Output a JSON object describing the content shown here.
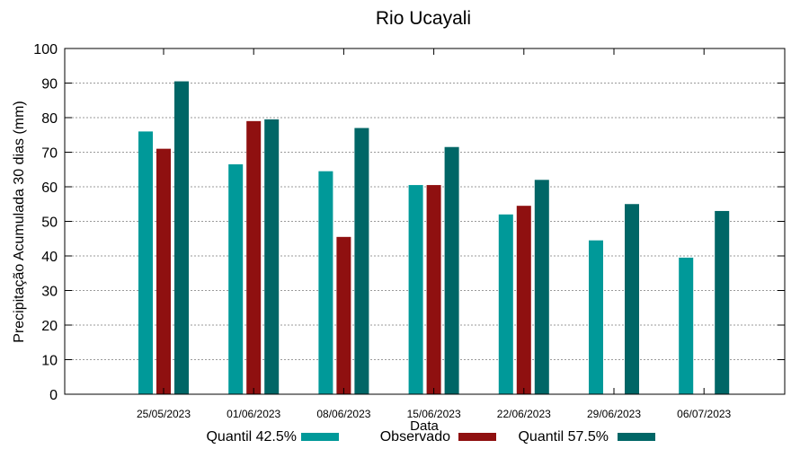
{
  "chart_data": {
    "type": "bar",
    "title": "Rio Ucayali",
    "xlabel": "Data",
    "ylabel": "Precipitação Acumulada 30 dias (mm)",
    "ylim": [
      0,
      100
    ],
    "yticks": [
      0,
      10,
      20,
      30,
      40,
      50,
      60,
      70,
      80,
      90,
      100
    ],
    "grid": true,
    "legend_position": "bottom",
    "categories": [
      "25/05/2023",
      "01/06/2023",
      "08/06/2023",
      "15/06/2023",
      "22/06/2023",
      "29/06/2023",
      "06/07/2023"
    ],
    "series": [
      {
        "name": "Quantil 42.5%",
        "color": "#009999",
        "values": [
          76,
          66.5,
          64.5,
          60.5,
          52,
          44.5,
          39.5
        ]
      },
      {
        "name": "Observado",
        "color": "#8f1010",
        "values": [
          71,
          79,
          45.5,
          60.5,
          54.5,
          null,
          null
        ]
      },
      {
        "name": "Quantil 57.5%",
        "color": "#006666",
        "values": [
          90.5,
          79.5,
          77,
          71.5,
          62,
          55,
          53
        ]
      }
    ]
  }
}
